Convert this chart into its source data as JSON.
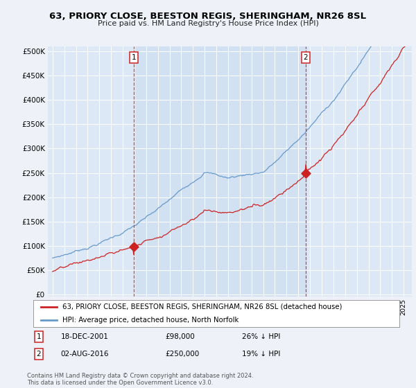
{
  "title": "63, PRIORY CLOSE, BEESTON REGIS, SHERINGHAM, NR26 8SL",
  "subtitle": "Price paid vs. HM Land Registry's House Price Index (HPI)",
  "background_color": "#eef2f8",
  "plot_bg_color": "#dce8f5",
  "legend_line1": "63, PRIORY CLOSE, BEESTON REGIS, SHERINGHAM, NR26 8SL (detached house)",
  "legend_line2": "HPI: Average price, detached house, North Norfolk",
  "sale1_date": "18-DEC-2001",
  "sale1_price": 98000,
  "sale1_pct": "26%",
  "sale2_date": "02-AUG-2016",
  "sale2_price": 250000,
  "sale2_pct": "19%",
  "footer": "Contains HM Land Registry data © Crown copyright and database right 2024.\nThis data is licensed under the Open Government Licence v3.0.",
  "hpi_color": "#6699cc",
  "price_color": "#cc2222",
  "sale_line_color": "#cc2222",
  "yticks": [
    0,
    50000,
    100000,
    150000,
    200000,
    250000,
    300000,
    350000,
    400000,
    450000,
    500000
  ],
  "start_year": 1995,
  "end_year": 2025
}
